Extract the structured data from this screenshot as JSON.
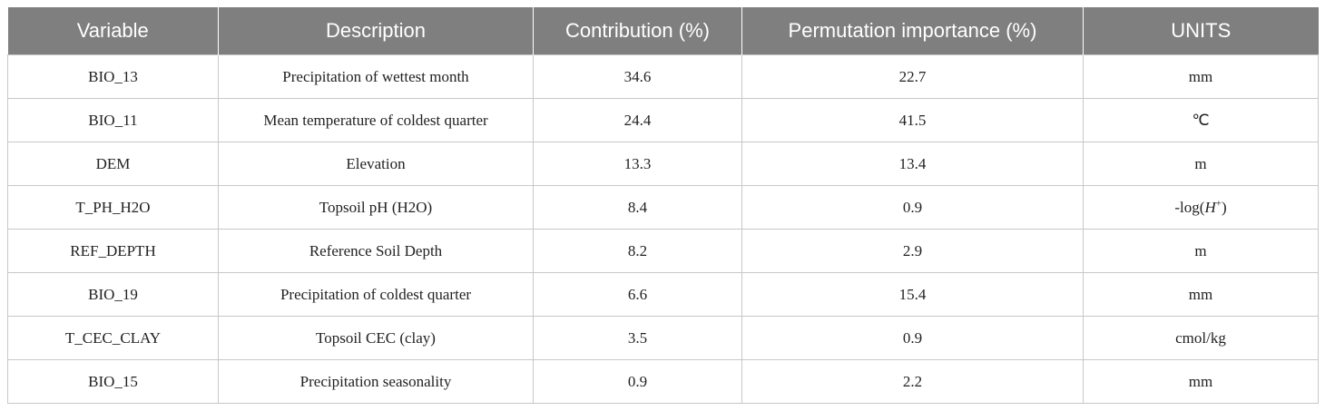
{
  "table": {
    "columns": [
      "Variable",
      "Description",
      "Contribution (%)",
      "Permutation importance (%)",
      "UNITS"
    ],
    "rows": [
      [
        "BIO_13",
        "Precipitation of wettest month",
        34.6,
        22.7,
        "mm"
      ],
      [
        "BIO_11",
        "Mean temperature of coldest quarter",
        24.4,
        41.5,
        "℃"
      ],
      [
        "DEM",
        "Elevation",
        13.3,
        13.4,
        "m"
      ],
      [
        "T_PH_H2O",
        "Topsoil pH (H2O)",
        8.4,
        0.9,
        [
          {
            "text": "-log("
          },
          {
            "text": "H",
            "style": "italic"
          },
          {
            "text": "+",
            "style": "sup"
          },
          {
            "text": ")"
          }
        ]
      ],
      [
        "REF_DEPTH",
        "Reference Soil Depth",
        8.2,
        2.9,
        "m"
      ],
      [
        "BIO_19",
        "Precipitation of coldest quarter",
        6.6,
        15.4,
        "mm"
      ],
      [
        "T_CEC_CLAY",
        "Topsoil CEC (clay)",
        3.5,
        0.9,
        "cmol/kg"
      ],
      [
        "BIO_15",
        "Precipitation seasonality",
        0.9,
        2.2,
        "mm"
      ]
    ]
  }
}
